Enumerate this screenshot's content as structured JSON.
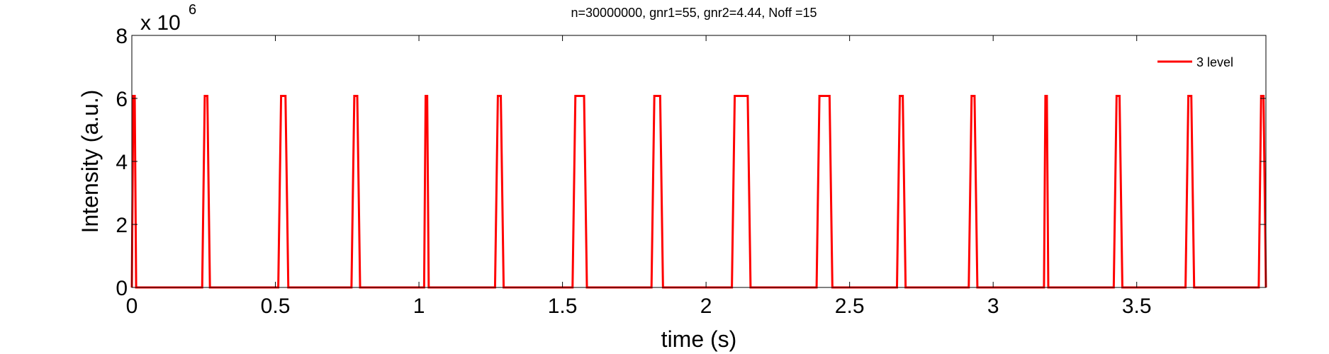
{
  "chart_data": {
    "type": "line",
    "title": "n=30000000, gnr1=55, gnr2=4.44, Noff =15",
    "xlabel": "time (s)",
    "ylabel": "Intensity (a.u.)",
    "exponent_base": "x 10",
    "exponent_power": "6",
    "xlim": [
      0,
      3.95
    ],
    "ylim": [
      0,
      8
    ],
    "x_ticks": [
      "0",
      "0.5",
      "1",
      "1.5",
      "2",
      "2.5",
      "3",
      "3.5"
    ],
    "x_tick_values": [
      0,
      0.5,
      1,
      1.5,
      2,
      2.5,
      3,
      3.5
    ],
    "y_ticks": [
      "0",
      "2",
      "4",
      "6",
      "8"
    ],
    "y_tick_values": [
      0,
      2,
      4,
      6,
      8
    ],
    "grid": false,
    "legend_position": "top-right",
    "series": [
      {
        "name": "3 level",
        "color": "#ff0000",
        "peak_value": 6.08,
        "pulses": [
          {
            "start": 0.0,
            "end": 0.015
          },
          {
            "start": 0.245,
            "end": 0.272
          },
          {
            "start": 0.51,
            "end": 0.545
          },
          {
            "start": 0.765,
            "end": 0.795
          },
          {
            "start": 1.018,
            "end": 1.034
          },
          {
            "start": 1.265,
            "end": 1.295
          },
          {
            "start": 1.535,
            "end": 1.585
          },
          {
            "start": 1.81,
            "end": 1.85
          },
          {
            "start": 2.09,
            "end": 2.155
          },
          {
            "start": 2.385,
            "end": 2.44
          },
          {
            "start": 2.665,
            "end": 2.695
          },
          {
            "start": 2.915,
            "end": 2.945
          },
          {
            "start": 3.177,
            "end": 3.192
          },
          {
            "start": 3.42,
            "end": 3.45
          },
          {
            "start": 3.67,
            "end": 3.7
          },
          {
            "start": 3.925,
            "end": 3.95
          }
        ]
      }
    ]
  }
}
